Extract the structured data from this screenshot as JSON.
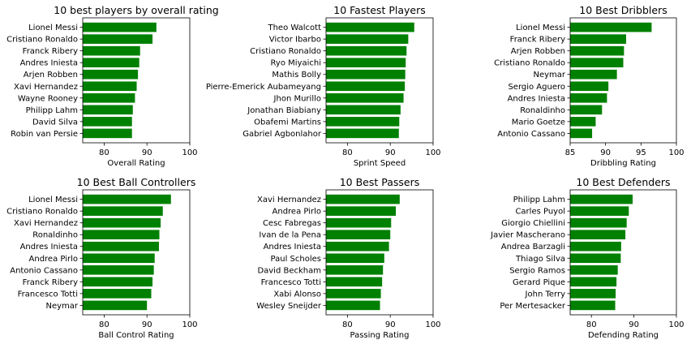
{
  "figure": {
    "bar_color": "#008000",
    "axis_color": "#000000",
    "background": "#ffffff"
  },
  "chart_data": [
    {
      "type": "bar",
      "orientation": "horizontal",
      "title": "10 best players by overall rating",
      "xlabel": "Overall Rating",
      "categories": [
        "Lionel Messi",
        "Cristiano Ronaldo",
        "Franck Ribery",
        "Andres Iniesta",
        "Arjen Robben",
        "Xavi Hernandez",
        "Wayne Rooney",
        "Philipp Lahm",
        "David Silva",
        "Robin van Persie"
      ],
      "values": [
        92.2,
        91.3,
        88.4,
        88.2,
        87.9,
        87.6,
        87.2,
        86.7,
        86.5,
        86.5
      ],
      "xlim": [
        75,
        100
      ],
      "xticks": [
        80,
        90,
        100
      ],
      "grid": false
    },
    {
      "type": "bar",
      "orientation": "horizontal",
      "title": "10 Fastest Players",
      "xlabel": "Sprint Speed",
      "categories": [
        "Theo Walcott",
        "Victor Ibarbo",
        "Cristiano Ronaldo",
        "Ryo Miyaichi",
        "Mathis Bolly",
        "Pierre-Emerick Aubameyang",
        "Jhon Murillo",
        "Jonathan Biabiany",
        "Obafemi Martins",
        "Gabriel Agbonlahor"
      ],
      "values": [
        95.6,
        94.2,
        93.8,
        93.6,
        93.5,
        93.4,
        93.1,
        92.4,
        92.1,
        92.0
      ],
      "xlim": [
        75,
        100
      ],
      "xticks": [
        80,
        90,
        100
      ],
      "grid": false
    },
    {
      "type": "bar",
      "orientation": "horizontal",
      "title": "10 Best Dribblers",
      "xlabel": "Dribbling Rating",
      "categories": [
        "Lionel Messi",
        "Franck Ribery",
        "Arjen Robben",
        "Cristiano Ronaldo",
        "Neymar",
        "Sergio Aguero",
        "Andres Iniesta",
        "Ronaldinho",
        "Mario Goetze",
        "Antonio Cassano"
      ],
      "values": [
        96.5,
        92.9,
        92.6,
        92.5,
        91.6,
        90.4,
        90.2,
        89.5,
        88.6,
        88.1
      ],
      "xlim": [
        85,
        100
      ],
      "xticks": [
        85,
        90,
        95,
        100
      ],
      "grid": false
    },
    {
      "type": "bar",
      "orientation": "horizontal",
      "title": "10 Best Ball Controllers",
      "xlabel": "Ball Control Rating",
      "categories": [
        "Lionel Messi",
        "Cristiano Ronaldo",
        "Xavi Hernandez",
        "Ronaldinho",
        "Andres Iniesta",
        "Andrea Pirlo",
        "Antonio Cassano",
        "Franck Ribery",
        "Francesco Totti",
        "Neymar"
      ],
      "values": [
        95.6,
        93.7,
        93.2,
        92.9,
        92.8,
        91.8,
        91.6,
        91.3,
        91.0,
        90.0
      ],
      "xlim": [
        75,
        100
      ],
      "xticks": [
        80,
        90,
        100
      ],
      "grid": false
    },
    {
      "type": "bar",
      "orientation": "horizontal",
      "title": "10 Best Passers",
      "xlabel": "Passing Rating",
      "categories": [
        "Xavi Hernandez",
        "Andrea Pirlo",
        "Cesc Fabregas",
        "Ivan de la Pena",
        "Andres Iniesta",
        "Paul Scholes",
        "David Beckham",
        "Francesco Totti",
        "Xabi Alonso",
        "Wesley Sneijder"
      ],
      "values": [
        92.2,
        91.3,
        90.2,
        90.0,
        89.7,
        88.6,
        88.3,
        88.1,
        87.8,
        87.6
      ],
      "xlim": [
        75,
        100
      ],
      "xticks": [
        80,
        90,
        100
      ],
      "grid": false
    },
    {
      "type": "bar",
      "orientation": "horizontal",
      "title": "10 Best Defenders",
      "xlabel": "Defending Rating",
      "categories": [
        "Philipp Lahm",
        "Carles Puyol",
        "Giorgio Chiellini",
        "Javier Mascherano",
        "Andrea Barzagli",
        "Thiago Silva",
        "Sergio Ramos",
        "Gerard Pique",
        "John Terry",
        "Per Mertesacker"
      ],
      "values": [
        89.7,
        88.8,
        88.3,
        88.0,
        87.0,
        86.9,
        86.2,
        85.9,
        85.7,
        85.6
      ],
      "xlim": [
        75,
        100
      ],
      "xticks": [
        80,
        90,
        100
      ],
      "grid": false
    }
  ]
}
